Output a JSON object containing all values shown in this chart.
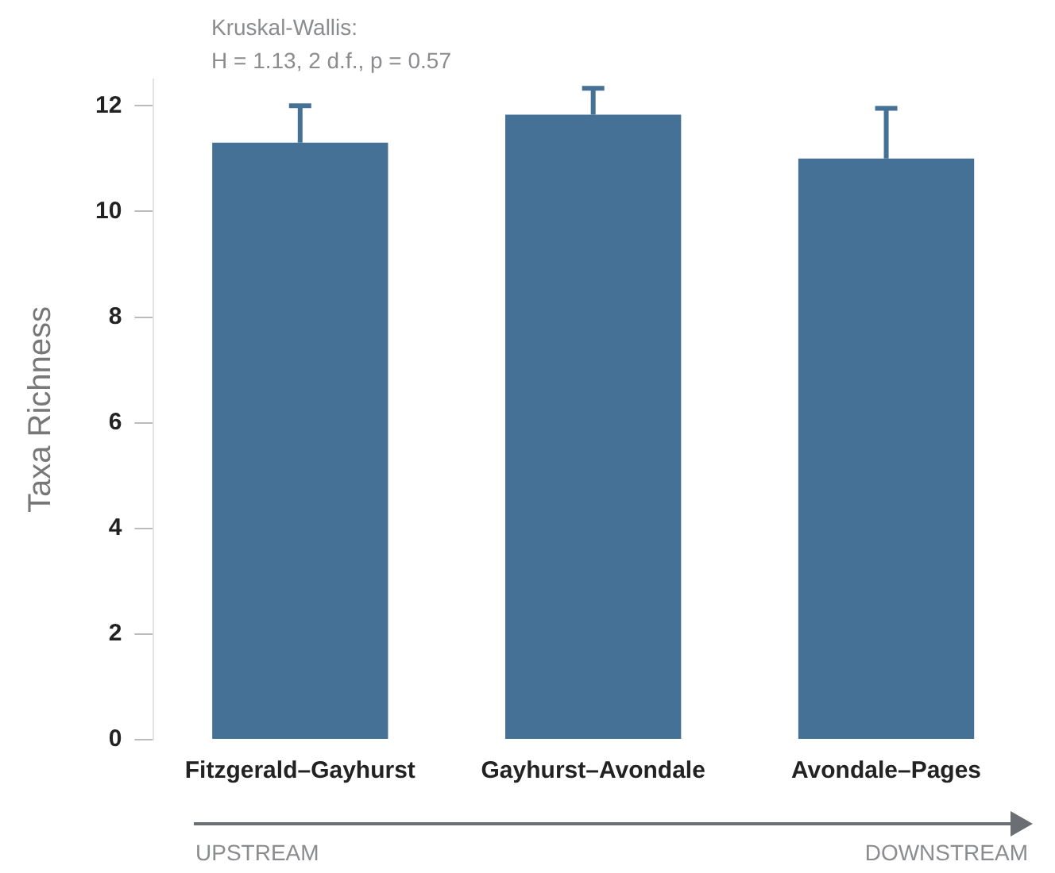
{
  "chart_data": {
    "type": "bar",
    "ylabel": "Taxa Richness",
    "categories": [
      "Fitzgerald–Gayhurst",
      "Gayhurst–Avondale",
      "Avondale–Pages"
    ],
    "values": [
      11.3,
      11.83,
      11.0
    ],
    "color": "#467196",
    "errors": [
      [
        11.3,
        12.0
      ],
      [
        11.83,
        12.33
      ],
      [
        11.0,
        11.95
      ]
    ],
    "ylim": [
      0,
      12.5
    ],
    "yticks": [
      0,
      2,
      4,
      6,
      8,
      10,
      12
    ],
    "grid": false,
    "legend": false,
    "annotations": [
      "Kruskal-Wallis:",
      "H = 1.13, 2 d.f., p = 0.57",
      "UPSTREAM",
      "DOWNSTREAM"
    ]
  }
}
